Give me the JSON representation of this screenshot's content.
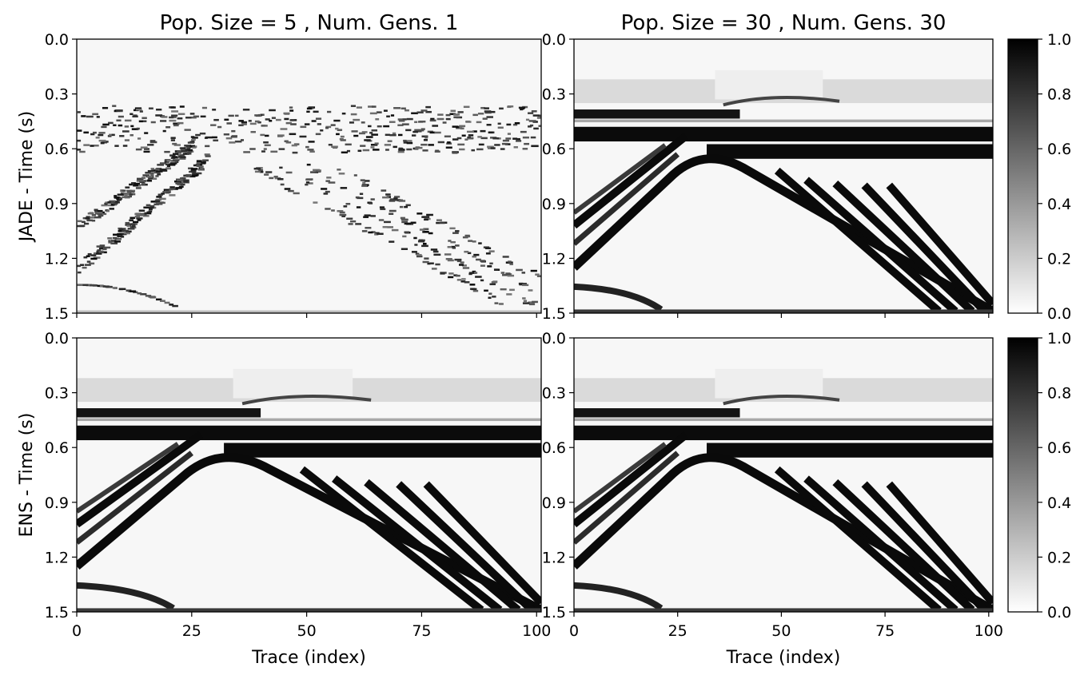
{
  "chart_data": [
    {
      "type": "heatmap",
      "panel": "top-left",
      "title": "Pop. Size = 5 , Num. Gens. 1",
      "ylabel": "JADE - Time (s)",
      "xlabel": "",
      "xlim": [
        0,
        101
      ],
      "ylim": [
        1.5,
        0.0
      ],
      "x_ticks": [
        "0",
        "25",
        "50",
        "75",
        "100"
      ],
      "y_ticks": [
        "0.0",
        "0.3",
        "0.6",
        "0.9",
        "1.2",
        "1.5"
      ],
      "colormap": "gray_r",
      "clim": [
        0,
        1
      ],
      "style": "noisy"
    },
    {
      "type": "heatmap",
      "panel": "top-right",
      "title": "Pop. Size = 30 , Num. Gens. 30",
      "ylabel": "",
      "xlabel": "",
      "xlim": [
        0,
        101
      ],
      "ylim": [
        1.5,
        0.0
      ],
      "x_ticks": [
        "0",
        "25",
        "50",
        "75",
        "100"
      ],
      "y_ticks": [
        "0.0",
        "0.3",
        "0.6",
        "0.9",
        "1.2",
        "1.5"
      ],
      "colormap": "gray_r",
      "clim": [
        0,
        1
      ],
      "style": "clean"
    },
    {
      "type": "heatmap",
      "panel": "bottom-left",
      "title": "",
      "ylabel": "ENS - Time (s)",
      "xlabel": "Trace (index)",
      "xlim": [
        0,
        101
      ],
      "ylim": [
        1.5,
        0.0
      ],
      "x_ticks": [
        "0",
        "25",
        "50",
        "75",
        "100"
      ],
      "y_ticks": [
        "0.0",
        "0.3",
        "0.6",
        "0.9",
        "1.2",
        "1.5"
      ],
      "colormap": "gray_r",
      "clim": [
        0,
        1
      ],
      "style": "clean"
    },
    {
      "type": "heatmap",
      "panel": "bottom-right",
      "title": "",
      "ylabel": "",
      "xlabel": "Trace (index)",
      "xlim": [
        0,
        101
      ],
      "ylim": [
        1.5,
        0.0
      ],
      "x_ticks": [
        "0",
        "25",
        "50",
        "75",
        "100"
      ],
      "y_ticks": [
        "0.0",
        "0.3",
        "0.6",
        "0.9",
        "1.2",
        "1.5"
      ],
      "colormap": "gray_r",
      "clim": [
        0,
        1
      ],
      "style": "clean"
    }
  ],
  "colorbars": [
    {
      "ticks": [
        "0.0",
        "0.2",
        "0.4",
        "0.6",
        "0.8",
        "1.0"
      ]
    },
    {
      "ticks": [
        "0.0",
        "0.2",
        "0.4",
        "0.6",
        "0.8",
        "1.0"
      ]
    }
  ],
  "colors": {
    "low": "#ffffff",
    "high": "#000000"
  }
}
